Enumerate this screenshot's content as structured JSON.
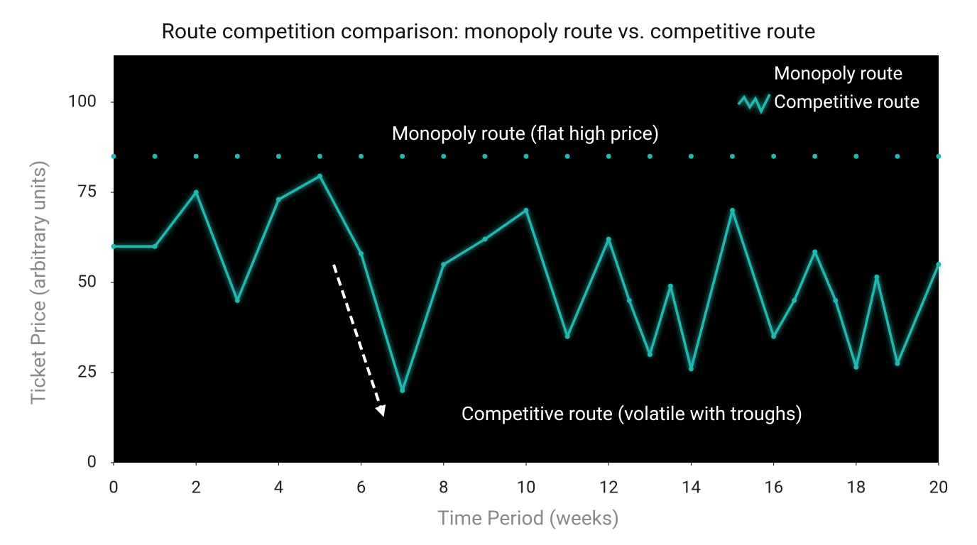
{
  "chart_data": {
    "type": "line",
    "title": "Route competition comparison: monopoly route vs. competitive route",
    "x_label": "Time Period (weeks)",
    "y_label": "Ticket Price (arbitrary units)",
    "xlim": [
      0,
      20
    ],
    "xticks": [
      0,
      2,
      4,
      6,
      8,
      10,
      12,
      14,
      16,
      18,
      20
    ],
    "ylim": [
      0,
      113
    ],
    "yticks": [
      0,
      25,
      50,
      75,
      100
    ],
    "legend": "upper right",
    "background": "#000000",
    "series": [
      {
        "name": "Monopoly route",
        "color": "#22b8b2",
        "x": [
          0,
          1,
          2,
          3,
          4,
          5,
          6,
          7,
          8,
          9,
          10,
          11,
          12,
          13,
          14,
          15,
          16,
          17,
          18,
          19,
          20
        ],
        "values": [
          85,
          85,
          85,
          85,
          85,
          85,
          85,
          85,
          85,
          85,
          85,
          85,
          85,
          85,
          85,
          85,
          85,
          85,
          85,
          85,
          85
        ]
      },
      {
        "name": "Competitive route",
        "color": "#22b8b2",
        "x": [
          0,
          1,
          2,
          3,
          4,
          5,
          6,
          7,
          8,
          9,
          10,
          11,
          12,
          12.5,
          13,
          13.5,
          14,
          15,
          16,
          16.5,
          17,
          17.5,
          18,
          18.5,
          19,
          20
        ],
        "values": [
          60,
          60,
          75,
          45,
          73,
          79.5,
          58,
          20,
          55,
          62,
          70,
          35,
          62,
          45,
          30,
          49,
          26,
          70,
          35,
          45,
          58.5,
          45,
          26.5,
          51.5,
          27.5,
          55
        ]
      }
    ],
    "annotations": [
      {
        "text": "Monopoly route (flat high price)"
      },
      {
        "text": "Competitive route (volatile with troughs)"
      }
    ]
  }
}
